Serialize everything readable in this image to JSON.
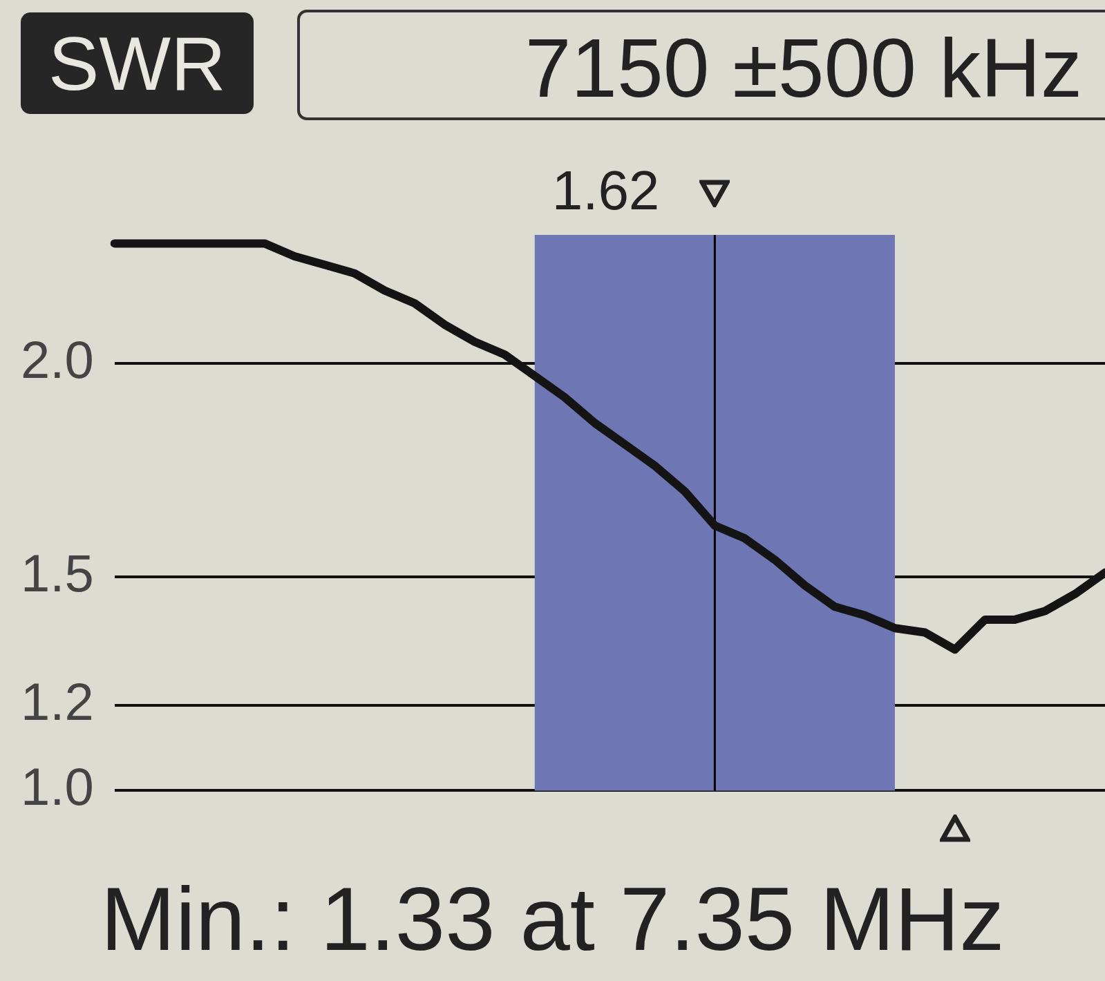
{
  "chart_data": {
    "type": "line",
    "title": "SWR",
    "subtitle": "7150 ±500 kHz",
    "categories": [
      null,
      null,
      null,
      null,
      null,
      null,
      null,
      null,
      null,
      null,
      null,
      null,
      null,
      null,
      null,
      null,
      null,
      null,
      null,
      null,
      null,
      null,
      null,
      null,
      null,
      null,
      null,
      null,
      null,
      null,
      null,
      null,
      null,
      null
    ],
    "series": [
      {
        "color": "#141414",
        "values": [
          2.28,
          2.28,
          2.28,
          2.28,
          2.28,
          2.28,
          2.25,
          2.23,
          2.21,
          2.17,
          2.14,
          2.09,
          2.05,
          2.02,
          1.97,
          1.92,
          1.86,
          1.81,
          1.76,
          1.7,
          1.62,
          1.59,
          1.54,
          1.48,
          1.43,
          1.41,
          1.38,
          1.37,
          1.33,
          1.4,
          1.4,
          1.42,
          1.46,
          1.51
        ]
      }
    ],
    "ylim": [
      1.0,
      2.3
    ],
    "yticks": [
      {
        "value": 1,
        "label": "1.0"
      },
      1.2,
      1.5,
      {
        "value": 2,
        "label": "2.0"
      }
    ],
    "tick_labels": "y",
    "grid": "y",
    "marker": "none",
    "line_style": "solid",
    "legend": false,
    "annotations": [
      "1.62",
      "Min.: 1.33 at 7.35 MHz"
    ]
  }
}
